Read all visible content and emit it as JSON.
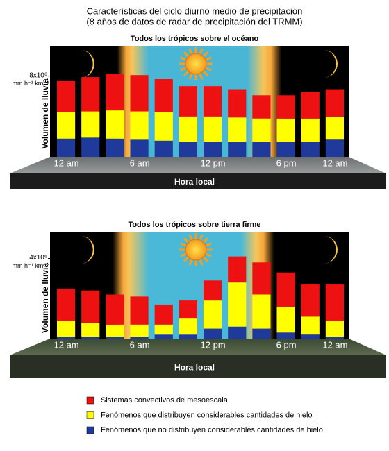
{
  "title": "Características del ciclo diurno medio de precipitación",
  "subtitle": "(8 años de datos de radar de precipitación del TRMM)",
  "chart_data": [
    {
      "type": "bar",
      "stacked": true,
      "title": "Todos los trópicos sobre el océano",
      "ylabel": "Volumen de lluvia",
      "xlabel": "Hora local",
      "categories": [
        "12 am",
        null,
        null,
        "6 am",
        null,
        null,
        "12 pm",
        null,
        null,
        "6 pm",
        null,
        "12 am"
      ],
      "ylim": [
        0,
        11000000
      ],
      "yticks": [
        {
          "value": 8000000,
          "label": "8x10⁶"
        }
      ],
      "y_unit": "mm h⁻¹ km⁻²",
      "series": [
        {
          "name": "Sistemas convectivos de mesoescala",
          "color": "#ee1111",
          "values": [
            3100000,
            3400000,
            3600000,
            3600000,
            3300000,
            3000000,
            3000000,
            2800000,
            2300000,
            2300000,
            2600000,
            2700000
          ]
        },
        {
          "name": "Fenómenos que distribuyen considerables cantidades de hielo",
          "color": "#ffff00",
          "values": [
            2600000,
            2600000,
            2800000,
            2800000,
            2800000,
            2500000,
            2500000,
            2400000,
            2300000,
            2300000,
            2300000,
            2300000
          ]
        },
        {
          "name": "Fenómenos que no distribuyen considerables cantidades de hielo",
          "color": "#1f3a9a",
          "values": [
            1800000,
            1900000,
            1800000,
            1700000,
            1600000,
            1500000,
            1500000,
            1500000,
            1500000,
            1500000,
            1500000,
            1700000
          ]
        }
      ]
    },
    {
      "type": "bar",
      "stacked": true,
      "title": "Todos los trópicos sobre tierra firme",
      "ylabel": "Volumen de lluvia",
      "xlabel": "Hora local",
      "categories": [
        "12 am",
        null,
        null,
        "6 am",
        null,
        null,
        "12 pm",
        null,
        null,
        "6 pm",
        null,
        "12 am"
      ],
      "ylim": [
        0,
        5300000
      ],
      "yticks": [
        {
          "value": 4000000,
          "label": "4x10⁶"
        }
      ],
      "y_unit": "mm h⁻¹ km⁻²",
      "series": [
        {
          "color": "#ee1111",
          "values": [
            1600000,
            1600000,
            1500000,
            1400000,
            1000000,
            900000,
            1000000,
            1300000,
            1600000,
            1700000,
            1600000,
            1800000
          ]
        },
        {
          "color": "#ffff00",
          "values": [
            800000,
            700000,
            600000,
            600000,
            500000,
            800000,
            1400000,
            2200000,
            1700000,
            1300000,
            900000,
            800000
          ]
        },
        {
          "color": "#1f3a9a",
          "values": [
            100000,
            100000,
            100000,
            100000,
            200000,
            200000,
            500000,
            600000,
            500000,
            300000,
            200000,
            100000
          ]
        }
      ]
    }
  ]
}
